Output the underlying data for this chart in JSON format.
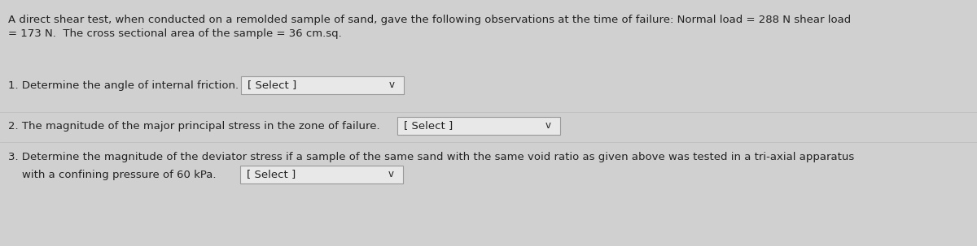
{
  "background_color": "#d0d0d0",
  "fig_width": 12.0,
  "fig_height": 3.03,
  "dpi": 100,
  "header_line1": "A direct shear test, when conducted on a remolded sample of sand, gave the following observations at the time of failure: Normal load = 288 N shear load",
  "header_line2": "= 173 N.  The cross sectional area of the sample = 36 cm.sq.",
  "q1_label": "1. Determine the angle of internal friction.",
  "q1_select": "[ Select ]",
  "q2_label": "2. The magnitude of the major principal stress in the zone of failure.",
  "q2_select": "[ Select ]",
  "q3_label": "3. Determine the magnitude of the deviator stress if a sample of the same sand with the same void ratio as given above was tested in a tri-axial apparatus",
  "q3_cont": "    with a confining pressure of 60 kPa.",
  "q3_select": "[ Select ]",
  "text_color": "#222222",
  "box_facecolor": "#e8e8e8",
  "box_edgecolor": "#999999",
  "chevron": "v",
  "font_size": 9.5
}
